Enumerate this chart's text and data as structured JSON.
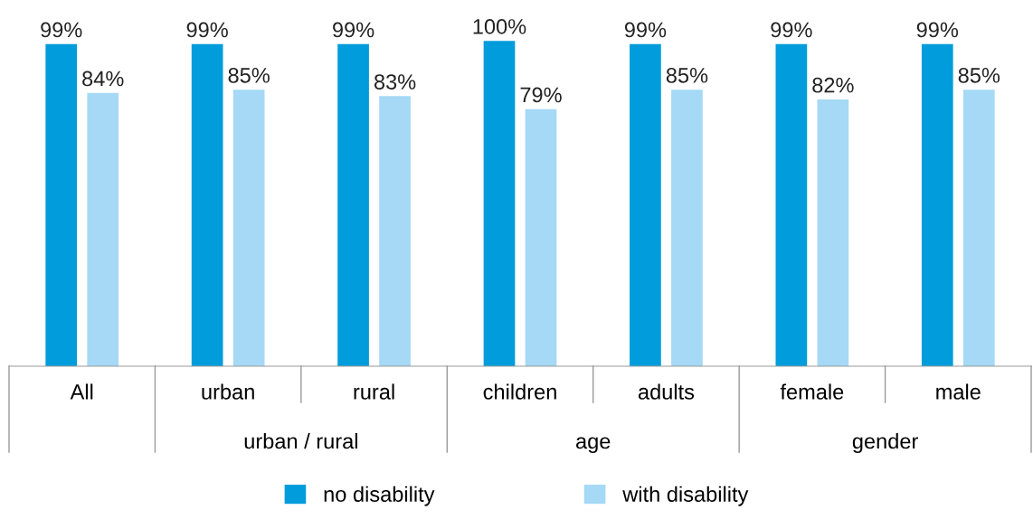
{
  "chart_data": {
    "type": "bar",
    "categories": [
      "All",
      "urban",
      "rural",
      "children",
      "adults",
      "female",
      "male"
    ],
    "series": [
      {
        "name": "no disability",
        "color": "#009cdb",
        "values": [
          99,
          99,
          99,
          100,
          99,
          99,
          99
        ],
        "value_labels": [
          "99%",
          "99%",
          "99%",
          "100%",
          "99%",
          "99%",
          "99%"
        ]
      },
      {
        "name": "with disability",
        "color": "#a5d9f5",
        "values": [
          84,
          85,
          83,
          79,
          85,
          82,
          85
        ],
        "value_labels": [
          "84%",
          "85%",
          "83%",
          "79%",
          "85%",
          "82%",
          "85%"
        ]
      }
    ],
    "relative": false,
    "annotations": [
      "urban / rural",
      "age",
      "gender"
    ],
    "legend": "bottom",
    "grid": false
  }
}
